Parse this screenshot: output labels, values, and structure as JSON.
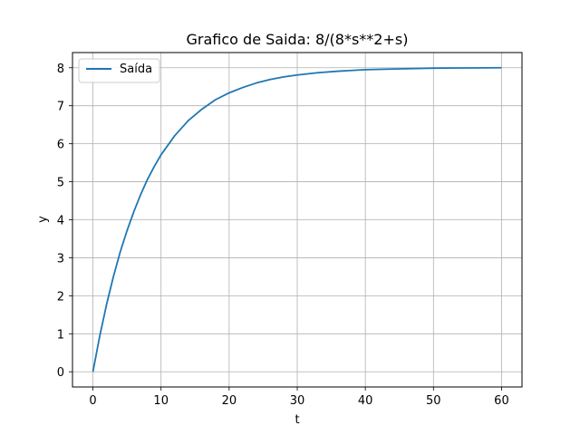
{
  "chart_data": {
    "type": "line",
    "title": "Grafico de Saida: 8/(8*s**2+s)",
    "xlabel": "t",
    "ylabel": "y",
    "xlim": [
      -3,
      63
    ],
    "ylim": [
      -0.4,
      8.4
    ],
    "xticks": [
      0,
      10,
      20,
      30,
      40,
      50,
      60
    ],
    "yticks": [
      0,
      1,
      2,
      3,
      4,
      5,
      6,
      7,
      8
    ],
    "grid": true,
    "legend_position": "top-left",
    "series": [
      {
        "name": "Saída",
        "color": "#1f77b4",
        "x": [
          0,
          1,
          2,
          3,
          4,
          5,
          6,
          7,
          8,
          9,
          10,
          12,
          14,
          16,
          18,
          20,
          22,
          24,
          26,
          28,
          30,
          33,
          36,
          40,
          45,
          50,
          55,
          60
        ],
        "y": [
          0,
          0.94,
          1.77,
          2.5,
          3.15,
          3.71,
          4.21,
          4.66,
          5.06,
          5.4,
          5.71,
          6.21,
          6.61,
          6.91,
          7.16,
          7.34,
          7.48,
          7.6,
          7.69,
          7.76,
          7.81,
          7.87,
          7.91,
          7.95,
          7.97,
          7.99,
          7.995,
          8.0
        ]
      }
    ]
  }
}
